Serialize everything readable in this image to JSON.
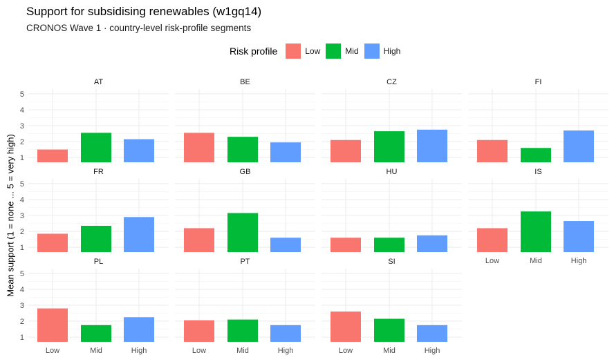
{
  "title": "Support for subsidising renewables  (w1gq14)",
  "subtitle": "CRONOS Wave 1 · country-level risk-profile segments",
  "legend": {
    "title": "Risk profile",
    "items": [
      {
        "label": "Low",
        "color": "#F8766D"
      },
      {
        "label": "Mid",
        "color": "#00BA38"
      },
      {
        "label": "High",
        "color": "#619CFF"
      }
    ]
  },
  "chart_data": {
    "type": "bar",
    "ylabel": "Mean support (1 = none ... 5 = very high)",
    "xlabel": "",
    "ylim": [
      0.7,
      5.3
    ],
    "yticks": [
      1,
      2,
      3,
      4,
      5
    ],
    "categories": [
      "Low",
      "Mid",
      "High"
    ],
    "colors": [
      "#F8766D",
      "#00BA38",
      "#619CFF"
    ],
    "grid": true,
    "legend_position": "top",
    "facets": [
      {
        "country": "AT",
        "values": [
          1.5,
          2.55,
          2.15
        ]
      },
      {
        "country": "BE",
        "values": [
          2.55,
          2.3,
          1.95
        ]
      },
      {
        "country": "CZ",
        "values": [
          2.1,
          2.65,
          2.75
        ]
      },
      {
        "country": "FI",
        "values": [
          2.1,
          1.6,
          2.7
        ]
      },
      {
        "country": "FR",
        "values": [
          1.85,
          2.35,
          2.9
        ]
      },
      {
        "country": "GB",
        "values": [
          2.2,
          3.15,
          1.6
        ]
      },
      {
        "country": "HU",
        "values": [
          1.6,
          1.6,
          1.75
        ]
      },
      {
        "country": "IS",
        "values": [
          2.2,
          3.25,
          2.65
        ]
      },
      {
        "country": "PL",
        "values": [
          2.8,
          1.75,
          2.25
        ]
      },
      {
        "country": "PT",
        "values": [
          2.05,
          2.1,
          1.75
        ]
      },
      {
        "country": "SI",
        "values": [
          2.6,
          2.15,
          1.75
        ]
      }
    ]
  }
}
